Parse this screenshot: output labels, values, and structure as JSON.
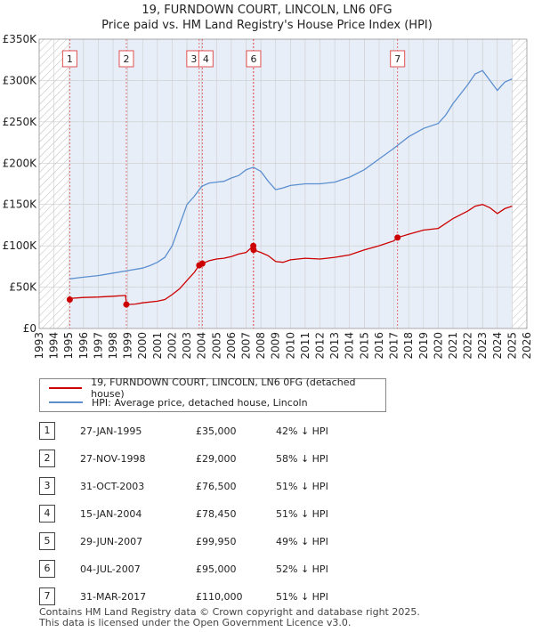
{
  "title_line1": "19, FURNDOWN COURT, LINCOLN, LN6 0FG",
  "title_line2": "Price paid vs. HM Land Registry's House Price Index (HPI)",
  "colors": {
    "property_line": "#cc0000",
    "hpi_line": "#5b8fcf",
    "shade_band": "#e8eef8",
    "marker_line": "#e05050",
    "grid": "#cccccc"
  },
  "legend": {
    "property_label": "19, FURNDOWN COURT, LINCOLN, LN6 0FG (detached house)",
    "hpi_label": "HPI: Average price, detached house, Lincoln"
  },
  "transactions": [
    {
      "num": "1",
      "date": "27-JAN-1995",
      "price": "£35,000",
      "diff": "42% ↓ HPI"
    },
    {
      "num": "2",
      "date": "27-NOV-1998",
      "price": "£29,000",
      "diff": "58% ↓ HPI"
    },
    {
      "num": "3",
      "date": "31-OCT-2003",
      "price": "£76,500",
      "diff": "51% ↓ HPI"
    },
    {
      "num": "4",
      "date": "15-JAN-2004",
      "price": "£78,450",
      "diff": "51% ↓ HPI"
    },
    {
      "num": "5",
      "date": "29-JUN-2007",
      "price": "£99,950",
      "diff": "49% ↓ HPI"
    },
    {
      "num": "6",
      "date": "04-JUL-2007",
      "price": "£95,000",
      "diff": "52% ↓ HPI"
    },
    {
      "num": "7",
      "date": "31-MAR-2017",
      "price": "£110,000",
      "diff": "51% ↓ HPI"
    }
  ],
  "footer": {
    "line1": "Contains HM Land Registry data © Crown copyright and database right 2025.",
    "line2": "This data is licensed under the Open Government Licence v3.0."
  },
  "chart_data": {
    "type": "line",
    "title": "19, FURNDOWN COURT, LINCOLN, LN6 0FG",
    "subtitle": "Price paid vs. HM Land Registry's House Price Index (HPI)",
    "xlabel": "",
    "ylabel": "",
    "xlim": [
      1993,
      2026
    ],
    "ylim": [
      0,
      350000
    ],
    "x_ticks": [
      1993,
      1994,
      1995,
      1996,
      1997,
      1998,
      1999,
      2000,
      2001,
      2002,
      2003,
      2004,
      2005,
      2006,
      2007,
      2008,
      2009,
      2010,
      2011,
      2012,
      2013,
      2014,
      2015,
      2016,
      2017,
      2018,
      2019,
      2020,
      2021,
      2022,
      2023,
      2024,
      2025,
      2026
    ],
    "y_ticks": [
      0,
      50000,
      100000,
      150000,
      200000,
      250000,
      300000,
      350000
    ],
    "y_tick_labels": [
      "£0",
      "£50K",
      "£100K",
      "£150K",
      "£200K",
      "£250K",
      "£300K",
      "£350K"
    ],
    "grid": true,
    "hatched_regions": [
      [
        1993,
        1995.07
      ],
      [
        2025.0,
        2026
      ]
    ],
    "sale_markers": [
      {
        "label": "1",
        "x": 1995.07,
        "y": 35000
      },
      {
        "label": "2",
        "x": 1998.9,
        "y": 29000
      },
      {
        "label": "3",
        "x": 2003.83,
        "y": 76500
      },
      {
        "label": "4",
        "x": 2004.04,
        "y": 78450
      },
      {
        "label": "5",
        "x": 2007.49,
        "y": 99950
      },
      {
        "label": "6",
        "x": 2007.51,
        "y": 95000
      },
      {
        "label": "7",
        "x": 2017.25,
        "y": 110000
      }
    ],
    "marker_boxes_shown": [
      "1",
      "2",
      "3",
      "4",
      "6",
      "7"
    ],
    "series": [
      {
        "name": "19, FURNDOWN COURT, LINCOLN, LN6 0FG (detached house)",
        "points": [
          [
            1995.07,
            35000
          ],
          [
            1995.2,
            36500
          ],
          [
            1996,
            37500
          ],
          [
            1997,
            38000
          ],
          [
            1998,
            39000
          ],
          [
            1998.85,
            40000
          ],
          [
            1998.9,
            29000
          ],
          [
            1999.5,
            29500
          ],
          [
            2000,
            31000
          ],
          [
            2001,
            33000
          ],
          [
            2001.5,
            35000
          ],
          [
            2002,
            41000
          ],
          [
            2002.5,
            48000
          ],
          [
            2003,
            58000
          ],
          [
            2003.5,
            68000
          ],
          [
            2003.83,
            76500
          ],
          [
            2004.04,
            78450
          ],
          [
            2004.5,
            82000
          ],
          [
            2005,
            84000
          ],
          [
            2005.5,
            85000
          ],
          [
            2006,
            87000
          ],
          [
            2006.5,
            90000
          ],
          [
            2007,
            92000
          ],
          [
            2007.49,
            99950
          ],
          [
            2007.51,
            95000
          ],
          [
            2008,
            92000
          ],
          [
            2008.5,
            88000
          ],
          [
            2009,
            81000
          ],
          [
            2009.5,
            80000
          ],
          [
            2010,
            83000
          ],
          [
            2011,
            85000
          ],
          [
            2012,
            84000
          ],
          [
            2013,
            86000
          ],
          [
            2014,
            89000
          ],
          [
            2015,
            95000
          ],
          [
            2016,
            100000
          ],
          [
            2017,
            106000
          ],
          [
            2017.25,
            110000
          ],
          [
            2018,
            114000
          ],
          [
            2019,
            119000
          ],
          [
            2020,
            121000
          ],
          [
            2020.5,
            127000
          ],
          [
            2021,
            133000
          ],
          [
            2022,
            142000
          ],
          [
            2022.5,
            148000
          ],
          [
            2023,
            150000
          ],
          [
            2023.5,
            146000
          ],
          [
            2024,
            139000
          ],
          [
            2024.5,
            145000
          ],
          [
            2025,
            148000
          ]
        ]
      },
      {
        "name": "HPI: Average price, detached house, Lincoln",
        "points": [
          [
            1995.07,
            60000
          ],
          [
            1995.5,
            61000
          ],
          [
            1996,
            62000
          ],
          [
            1997,
            64000
          ],
          [
            1998,
            67000
          ],
          [
            1999,
            70000
          ],
          [
            2000,
            73000
          ],
          [
            2000.5,
            76000
          ],
          [
            2001,
            80000
          ],
          [
            2001.5,
            86000
          ],
          [
            2002,
            100000
          ],
          [
            2002.5,
            125000
          ],
          [
            2003,
            150000
          ],
          [
            2003.5,
            160000
          ],
          [
            2004,
            172000
          ],
          [
            2004.5,
            176000
          ],
          [
            2005,
            177000
          ],
          [
            2005.5,
            178000
          ],
          [
            2006,
            182000
          ],
          [
            2006.5,
            185000
          ],
          [
            2007,
            192000
          ],
          [
            2007.5,
            195000
          ],
          [
            2008,
            190000
          ],
          [
            2008.5,
            178000
          ],
          [
            2009,
            168000
          ],
          [
            2009.5,
            170000
          ],
          [
            2010,
            173000
          ],
          [
            2011,
            175000
          ],
          [
            2012,
            175000
          ],
          [
            2013,
            177000
          ],
          [
            2014,
            183000
          ],
          [
            2015,
            192000
          ],
          [
            2016,
            205000
          ],
          [
            2017,
            218000
          ],
          [
            2018,
            232000
          ],
          [
            2019,
            242000
          ],
          [
            2020,
            248000
          ],
          [
            2020.5,
            258000
          ],
          [
            2021,
            272000
          ],
          [
            2022,
            295000
          ],
          [
            2022.5,
            308000
          ],
          [
            2023,
            312000
          ],
          [
            2023.5,
            300000
          ],
          [
            2024,
            288000
          ],
          [
            2024.5,
            298000
          ],
          [
            2025,
            302000
          ]
        ]
      }
    ]
  }
}
